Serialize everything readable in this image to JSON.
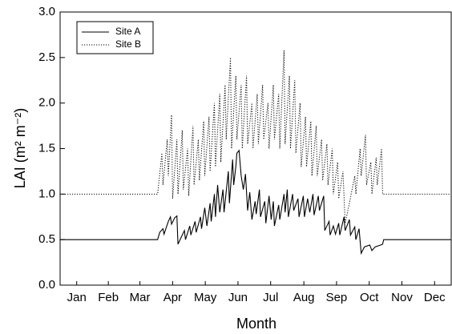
{
  "chart_data": {
    "type": "line",
    "xlabel": "Month",
    "ylabel": "LAI (m² m⁻²)",
    "xlim": [
      0,
      365
    ],
    "ylim": [
      0,
      3
    ],
    "xticks": [
      {
        "value": 15.5,
        "label": "Jan"
      },
      {
        "value": 45,
        "label": "Feb"
      },
      {
        "value": 74.5,
        "label": "Mar"
      },
      {
        "value": 105,
        "label": "Apr"
      },
      {
        "value": 135.5,
        "label": "May"
      },
      {
        "value": 166,
        "label": "Jun"
      },
      {
        "value": 196.5,
        "label": "Jul"
      },
      {
        "value": 227.5,
        "label": "Aug"
      },
      {
        "value": 258,
        "label": "Sep"
      },
      {
        "value": 288.5,
        "label": "Oct"
      },
      {
        "value": 319,
        "label": "Nov"
      },
      {
        "value": 349.5,
        "label": "Dec"
      }
    ],
    "yticks": [
      {
        "value": 0,
        "label": "0.0"
      },
      {
        "value": 0.5,
        "label": "0.5"
      },
      {
        "value": 1,
        "label": "1.0"
      },
      {
        "value": 1.5,
        "label": "1.5"
      },
      {
        "value": 2,
        "label": "2.0"
      },
      {
        "value": 2.5,
        "label": "2.5"
      },
      {
        "value": 3,
        "label": "3.0"
      }
    ],
    "legend": "upper left",
    "series": [
      {
        "name": "Site A",
        "color": "#000000",
        "linestyle": "solid",
        "x": [
          0,
          91,
          93,
          96,
          97,
          101,
          103,
          104,
          107,
          109,
          110,
          114,
          116,
          117,
          121,
          122,
          126,
          127,
          131,
          132,
          135,
          137,
          140,
          141,
          144,
          145,
          147,
          149,
          152,
          153,
          157,
          158,
          161,
          162,
          164,
          165,
          167,
          169,
          171,
          173,
          175,
          177,
          179,
          182,
          183,
          186,
          187,
          191,
          192,
          195,
          197,
          199,
          200,
          204,
          205,
          209,
          210,
          212,
          213,
          217,
          218,
          222,
          223,
          227,
          228,
          231,
          233,
          236,
          237,
          241,
          242,
          246,
          247,
          251,
          252,
          255,
          257,
          260,
          261,
          265,
          266,
          270,
          271,
          275,
          276,
          279,
          281,
          284,
          289,
          291,
          294,
          299,
          301,
          302,
          365
        ],
        "values": [
          0.5,
          0.5,
          0.58,
          0.62,
          0.56,
          0.7,
          0.75,
          0.67,
          0.74,
          0.76,
          0.45,
          0.55,
          0.6,
          0.5,
          0.65,
          0.55,
          0.7,
          0.58,
          0.75,
          0.62,
          0.85,
          0.65,
          0.9,
          0.7,
          1.0,
          0.75,
          1.1,
          0.8,
          1.05,
          0.8,
          1.25,
          0.9,
          1.38,
          1.1,
          1.3,
          1.45,
          1.48,
          1.2,
          1.05,
          1.22,
          0.82,
          1.02,
          0.72,
          0.92,
          0.78,
          1.05,
          0.75,
          0.92,
          0.68,
          0.98,
          0.72,
          0.92,
          0.65,
          0.88,
          0.72,
          1.0,
          0.8,
          1.05,
          0.75,
          1.0,
          0.82,
          0.95,
          0.75,
          0.98,
          0.75,
          0.95,
          0.8,
          1.0,
          0.77,
          0.98,
          0.82,
          0.98,
          0.6,
          0.7,
          0.55,
          0.65,
          0.56,
          0.68,
          0.55,
          0.75,
          0.6,
          0.72,
          0.55,
          0.64,
          0.5,
          0.62,
          0.35,
          0.42,
          0.44,
          0.38,
          0.42,
          0.44,
          0.45,
          0.5,
          0.5
        ]
      },
      {
        "name": "Site B",
        "color": "#000000",
        "linestyle": "dotted",
        "x": [
          0,
          91,
          95,
          96,
          100,
          101,
          104,
          105,
          109,
          110,
          114,
          115,
          119,
          120,
          124,
          125,
          129,
          130,
          134,
          135,
          139,
          140,
          144,
          145,
          149,
          150,
          154,
          155,
          159,
          160,
          164,
          165,
          169,
          170,
          174,
          175,
          179,
          180,
          184,
          185,
          189,
          190,
          194,
          195,
          199,
          200,
          204,
          205,
          209,
          210,
          214,
          215,
          219,
          220,
          224,
          225,
          229,
          230,
          234,
          235,
          239,
          240,
          244,
          245,
          249,
          250,
          254,
          255,
          259,
          260,
          264,
          266,
          270,
          275,
          276,
          280,
          281,
          285,
          286,
          290,
          291,
          295,
          296,
          300,
          301,
          365
        ],
        "values": [
          1.0,
          1.0,
          1.45,
          1.1,
          1.6,
          1.2,
          1.87,
          0.95,
          1.6,
          1.0,
          1.7,
          1.05,
          1.5,
          0.98,
          1.75,
          1.1,
          1.6,
          1.15,
          1.8,
          1.2,
          1.85,
          1.25,
          2.0,
          1.3,
          2.1,
          1.35,
          2.2,
          1.6,
          2.5,
          1.5,
          2.3,
          1.6,
          2.2,
          1.5,
          2.3,
          1.55,
          2.0,
          1.5,
          2.1,
          1.55,
          2.2,
          1.6,
          2.0,
          1.5,
          2.2,
          1.6,
          2.1,
          1.5,
          2.58,
          1.55,
          2.3,
          1.5,
          2.25,
          1.45,
          2.0,
          1.3,
          1.85,
          1.3,
          1.8,
          1.2,
          1.75,
          1.2,
          1.6,
          1.15,
          1.55,
          1.1,
          1.5,
          1.0,
          1.35,
          0.95,
          1.25,
          0.68,
          0.9,
          1.2,
          1.0,
          1.5,
          1.2,
          1.65,
          1.1,
          1.35,
          1.0,
          1.4,
          1.1,
          1.5,
          1.0,
          1.0
        ]
      }
    ]
  }
}
